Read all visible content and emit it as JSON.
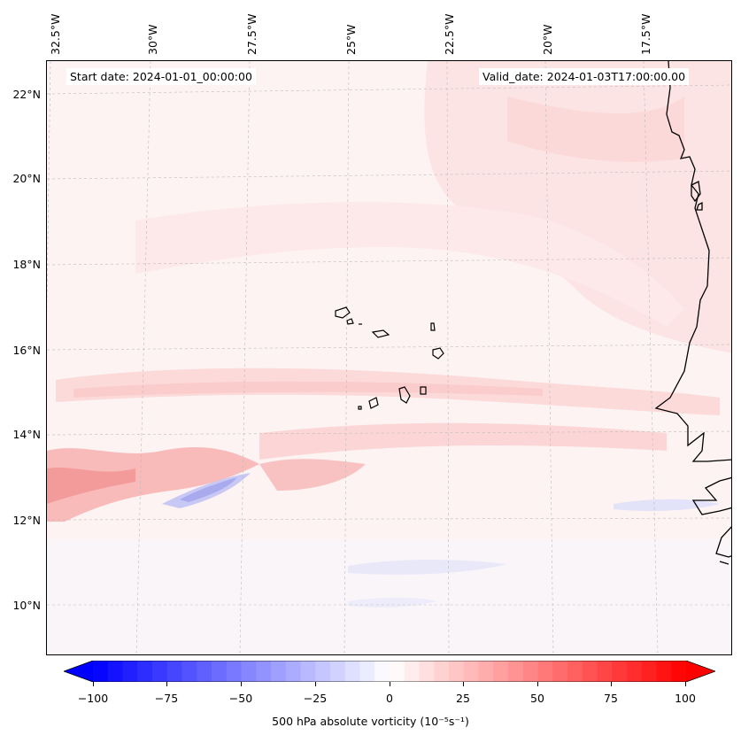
{
  "header": {
    "start_date": "Start date: 2024-01-01_00:00:00",
    "valid_date": "Valid_date: 2024-01-03T17:00:00.00"
  },
  "longitude_labels": [
    "32.5°W",
    "30°W",
    "27.5°W",
    "25°W",
    "22.5°W",
    "20°W",
    "17.5°W"
  ],
  "latitude_labels": [
    "22°N",
    "20°N",
    "18°N",
    "16°N",
    "14°N",
    "12°N",
    "10°N"
  ],
  "colorbar": {
    "ticks": [
      "−100",
      "−75",
      "−50",
      "−25",
      "0",
      "25",
      "50",
      "75",
      "100"
    ],
    "label": "500 hPa absolute vorticity (10⁻⁵s⁻¹)",
    "min": -100,
    "max": 100,
    "negative_color": "#0000ff",
    "positive_color": "#ff0000"
  },
  "colors": {
    "coastline": "#000000",
    "gridline": "#bbbbbb",
    "background_tint": "#fdf6f6"
  }
}
